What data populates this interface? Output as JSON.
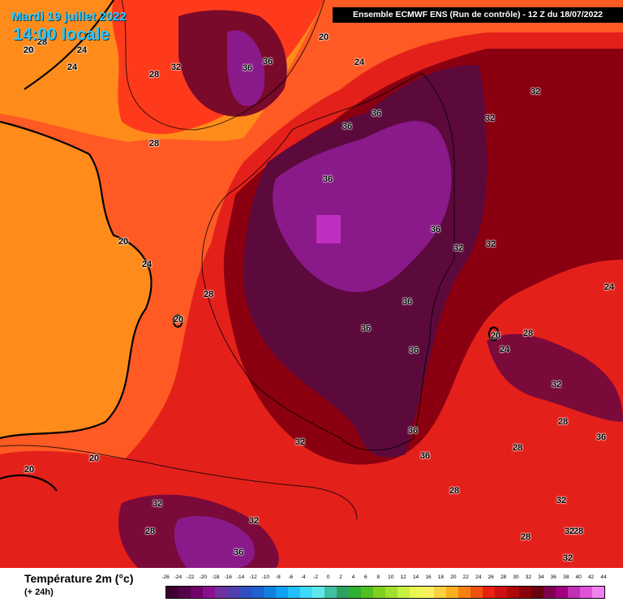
{
  "header": {
    "date": "Mardi 19 juillet 2022",
    "time": "14:00 locale",
    "model": "Ensemble ECMWF ENS  (Run de contrôle)  -  12 Z du 18/07/2022"
  },
  "legend": {
    "title": "Température 2m (°c)",
    "subtitle": "(+ 24h)",
    "ticks": [
      "-26",
      "-24",
      "-22",
      "-20",
      "-18",
      "-16",
      "-14",
      "-12",
      "-10",
      "-8",
      "-6",
      "-4",
      "-2",
      "0",
      "2",
      "4",
      "6",
      "8",
      "10",
      "12",
      "14",
      "16",
      "18",
      "20",
      "22",
      "24",
      "26",
      "28",
      "30",
      "32",
      "34",
      "36",
      "38",
      "40",
      "42",
      "44"
    ],
    "colors": [
      "#3d0030",
      "#56004a",
      "#70006a",
      "#8a1090",
      "#7030a0",
      "#5040b0",
      "#3050c0",
      "#2060d0",
      "#1080e0",
      "#10a0f0",
      "#20c0f8",
      "#40d8f8",
      "#60e8e8",
      "#40c0a0",
      "#30a060",
      "#30b030",
      "#50c020",
      "#80d020",
      "#a0e030",
      "#c8f040",
      "#e8f850",
      "#f8f060",
      "#f8d040",
      "#f8b020",
      "#f88010",
      "#f05010",
      "#e82010",
      "#d01010",
      "#b00808",
      "#8a0008",
      "#6a0010",
      "#800050",
      "#a00080",
      "#c030b0",
      "#e050d8",
      "#f080f0"
    ]
  },
  "map_colors": {
    "sea": "#ff8c1a",
    "warm_band": "#ff5a24",
    "hot_land": "#e4201b",
    "very_hot": "#8a0010",
    "extreme": "#5c0a3c",
    "peak": "#8a1a8a",
    "isotherm": "#000000"
  },
  "isotherm_labels": [
    {
      "text": "20",
      "kind": "t20"
    },
    {
      "text": "28",
      "kind": "t28"
    },
    {
      "text": "24",
      "kind": "t24"
    },
    {
      "text": "24",
      "kind": "t24"
    },
    {
      "text": "20",
      "kind": "t20"
    },
    {
      "text": "32",
      "kind": "t32"
    },
    {
      "text": "36",
      "kind": "t36"
    },
    {
      "text": "36",
      "kind": "t36"
    },
    {
      "text": "20",
      "kind": "t20"
    },
    {
      "text": "24",
      "kind": "t24"
    },
    {
      "text": "28",
      "kind": "t28"
    },
    {
      "text": "28",
      "kind": "t28"
    },
    {
      "text": "32",
      "kind": "t32"
    },
    {
      "text": "32",
      "kind": "t32"
    },
    {
      "text": "36",
      "kind": "t36"
    },
    {
      "text": "36",
      "kind": "t36"
    },
    {
      "text": "36",
      "kind": "t36"
    },
    {
      "text": "20",
      "kind": "t20"
    },
    {
      "text": "24",
      "kind": "t24"
    },
    {
      "text": "28",
      "kind": "t28"
    },
    {
      "text": "36",
      "kind": "t36"
    },
    {
      "text": "32",
      "kind": "t32"
    },
    {
      "text": "32",
      "kind": "t32"
    },
    {
      "text": "24",
      "kind": "t24"
    },
    {
      "text": "36",
      "kind": "t36"
    },
    {
      "text": "20",
      "kind": "t20"
    },
    {
      "text": "36",
      "kind": "t36"
    },
    {
      "text": "36",
      "kind": "t36"
    },
    {
      "text": "28",
      "kind": "t28"
    },
    {
      "text": "20",
      "kind": "t20"
    },
    {
      "text": "24",
      "kind": "t24"
    },
    {
      "text": "32",
      "kind": "t32"
    },
    {
      "text": "36",
      "kind": "t36"
    },
    {
      "text": "32",
      "kind": "t32"
    },
    {
      "text": "36",
      "kind": "t36"
    },
    {
      "text": "28",
      "kind": "t28"
    },
    {
      "text": "36",
      "kind": "t36"
    },
    {
      "text": "28",
      "kind": "t28"
    },
    {
      "text": "20",
      "kind": "t20"
    },
    {
      "text": "20",
      "kind": "t20"
    },
    {
      "text": "28",
      "kind": "t28"
    },
    {
      "text": "32",
      "kind": "t32"
    },
    {
      "text": "32",
      "kind": "t32"
    },
    {
      "text": "28",
      "kind": "t28"
    },
    {
      "text": "36",
      "kind": "t36"
    },
    {
      "text": "28",
      "kind": "t28"
    },
    {
      "text": "32",
      "kind": "t32"
    },
    {
      "text": "28",
      "kind": "t28"
    },
    {
      "text": "32",
      "kind": "t32"
    },
    {
      "text": "32",
      "kind": "t32"
    }
  ]
}
